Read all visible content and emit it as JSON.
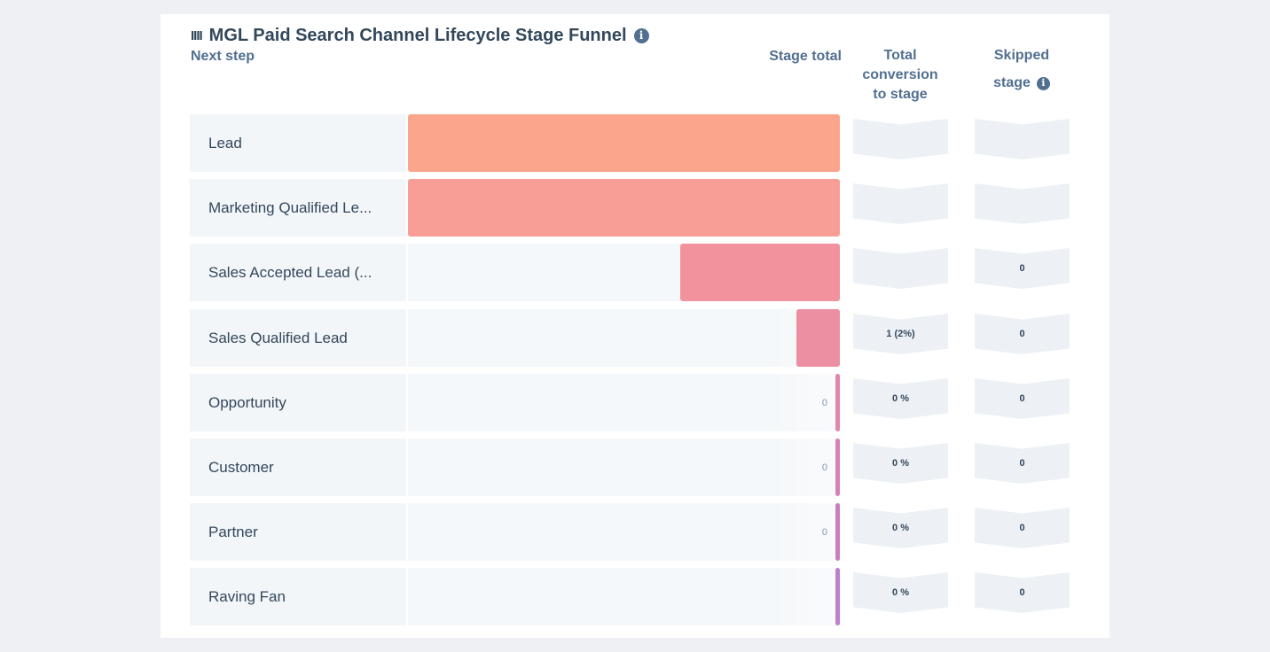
{
  "card": {
    "title_prefix": "IIII",
    "title": "MGL Paid Search Channel Lifecycle Stage Funnel"
  },
  "headers": {
    "next_step": "Next step",
    "stage_total": "Stage total",
    "total_conversion": [
      "Total",
      "conversion",
      "to stage"
    ],
    "skipped_stage": [
      "Skipped",
      "stage"
    ]
  },
  "chart_data": {
    "type": "bar",
    "title": "MGL Paid Search Channel Lifecycle Stage Funnel",
    "categories": [
      "Lead",
      "Marketing Qualified Le...",
      "Sales Accepted Lead (...",
      "Sales Qualified Lead",
      "Opportunity",
      "Customer",
      "Partner",
      "Raving Fan"
    ],
    "values": [
      100,
      100,
      37,
      10,
      1,
      1,
      1,
      1
    ],
    "colors": [
      "#fba58c",
      "#f99e97",
      "#f2929c",
      "#ec8fa2",
      "#e286b0",
      "#d680ba",
      "#ca7ec2",
      "#bf80cb"
    ],
    "bar_value_labels": [
      "",
      "",
      "",
      "",
      "0",
      "0",
      "0",
      ""
    ],
    "total_conversion": [
      "",
      "",
      "",
      "1 (2%)",
      "0 %",
      "0 %",
      "0 %",
      "0 %"
    ],
    "skipped_stage": [
      "",
      "",
      "0",
      "0",
      "0",
      "0",
      "0",
      "0"
    ],
    "xlim": [
      0,
      100
    ]
  }
}
